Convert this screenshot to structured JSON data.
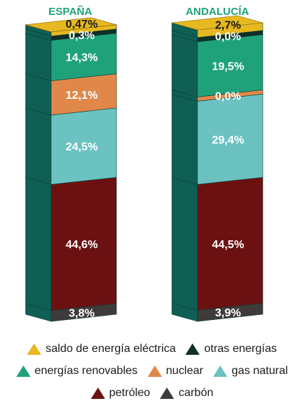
{
  "chart_data": {
    "type": "bar",
    "stacked": true,
    "categories": [
      "ESPAÑA",
      "ANDALUCÍA"
    ],
    "series": [
      {
        "name": "carbón",
        "color": "#3f3b3b",
        "labels": [
          "3,8%",
          "3,9%"
        ],
        "values": [
          3.8,
          3.9
        ]
      },
      {
        "name": "petróleo",
        "color": "#6b1111",
        "labels": [
          "44,6%",
          "44,5%"
        ],
        "values": [
          44.6,
          44.5
        ]
      },
      {
        "name": "gas natural",
        "color": "#6bc2c1",
        "labels": [
          "24,5%",
          "29,4%"
        ],
        "values": [
          24.5,
          29.4
        ]
      },
      {
        "name": "nuclear",
        "color": "#e0884a",
        "labels": [
          "12,1%",
          "0,0%"
        ],
        "values": [
          12.1,
          0.0
        ]
      },
      {
        "name": "energías renovables",
        "color": "#1fa27a",
        "labels": [
          "14,3%",
          "19,5%"
        ],
        "values": [
          14.3,
          19.5
        ]
      },
      {
        "name": "otras energías",
        "color": "#0f2f28",
        "labels": [
          "0,3%",
          "0,0%"
        ],
        "values": [
          0.3,
          0.0
        ]
      },
      {
        "name": "saldo de energía eléctrica",
        "color": "#e7b81f",
        "labels": [
          "0,47%",
          "2,7%"
        ],
        "values": [
          0.47,
          2.7
        ]
      }
    ],
    "legend_rows": [
      [
        "saldo de energía eléctrica",
        "otras energías"
      ],
      [
        "energías renovables",
        "nuclear",
        "gas natural"
      ],
      [
        "petróleo",
        "carbón"
      ]
    ]
  },
  "colors": {
    "side_face": "#0f5f54",
    "category_title": "#1fa27a"
  }
}
